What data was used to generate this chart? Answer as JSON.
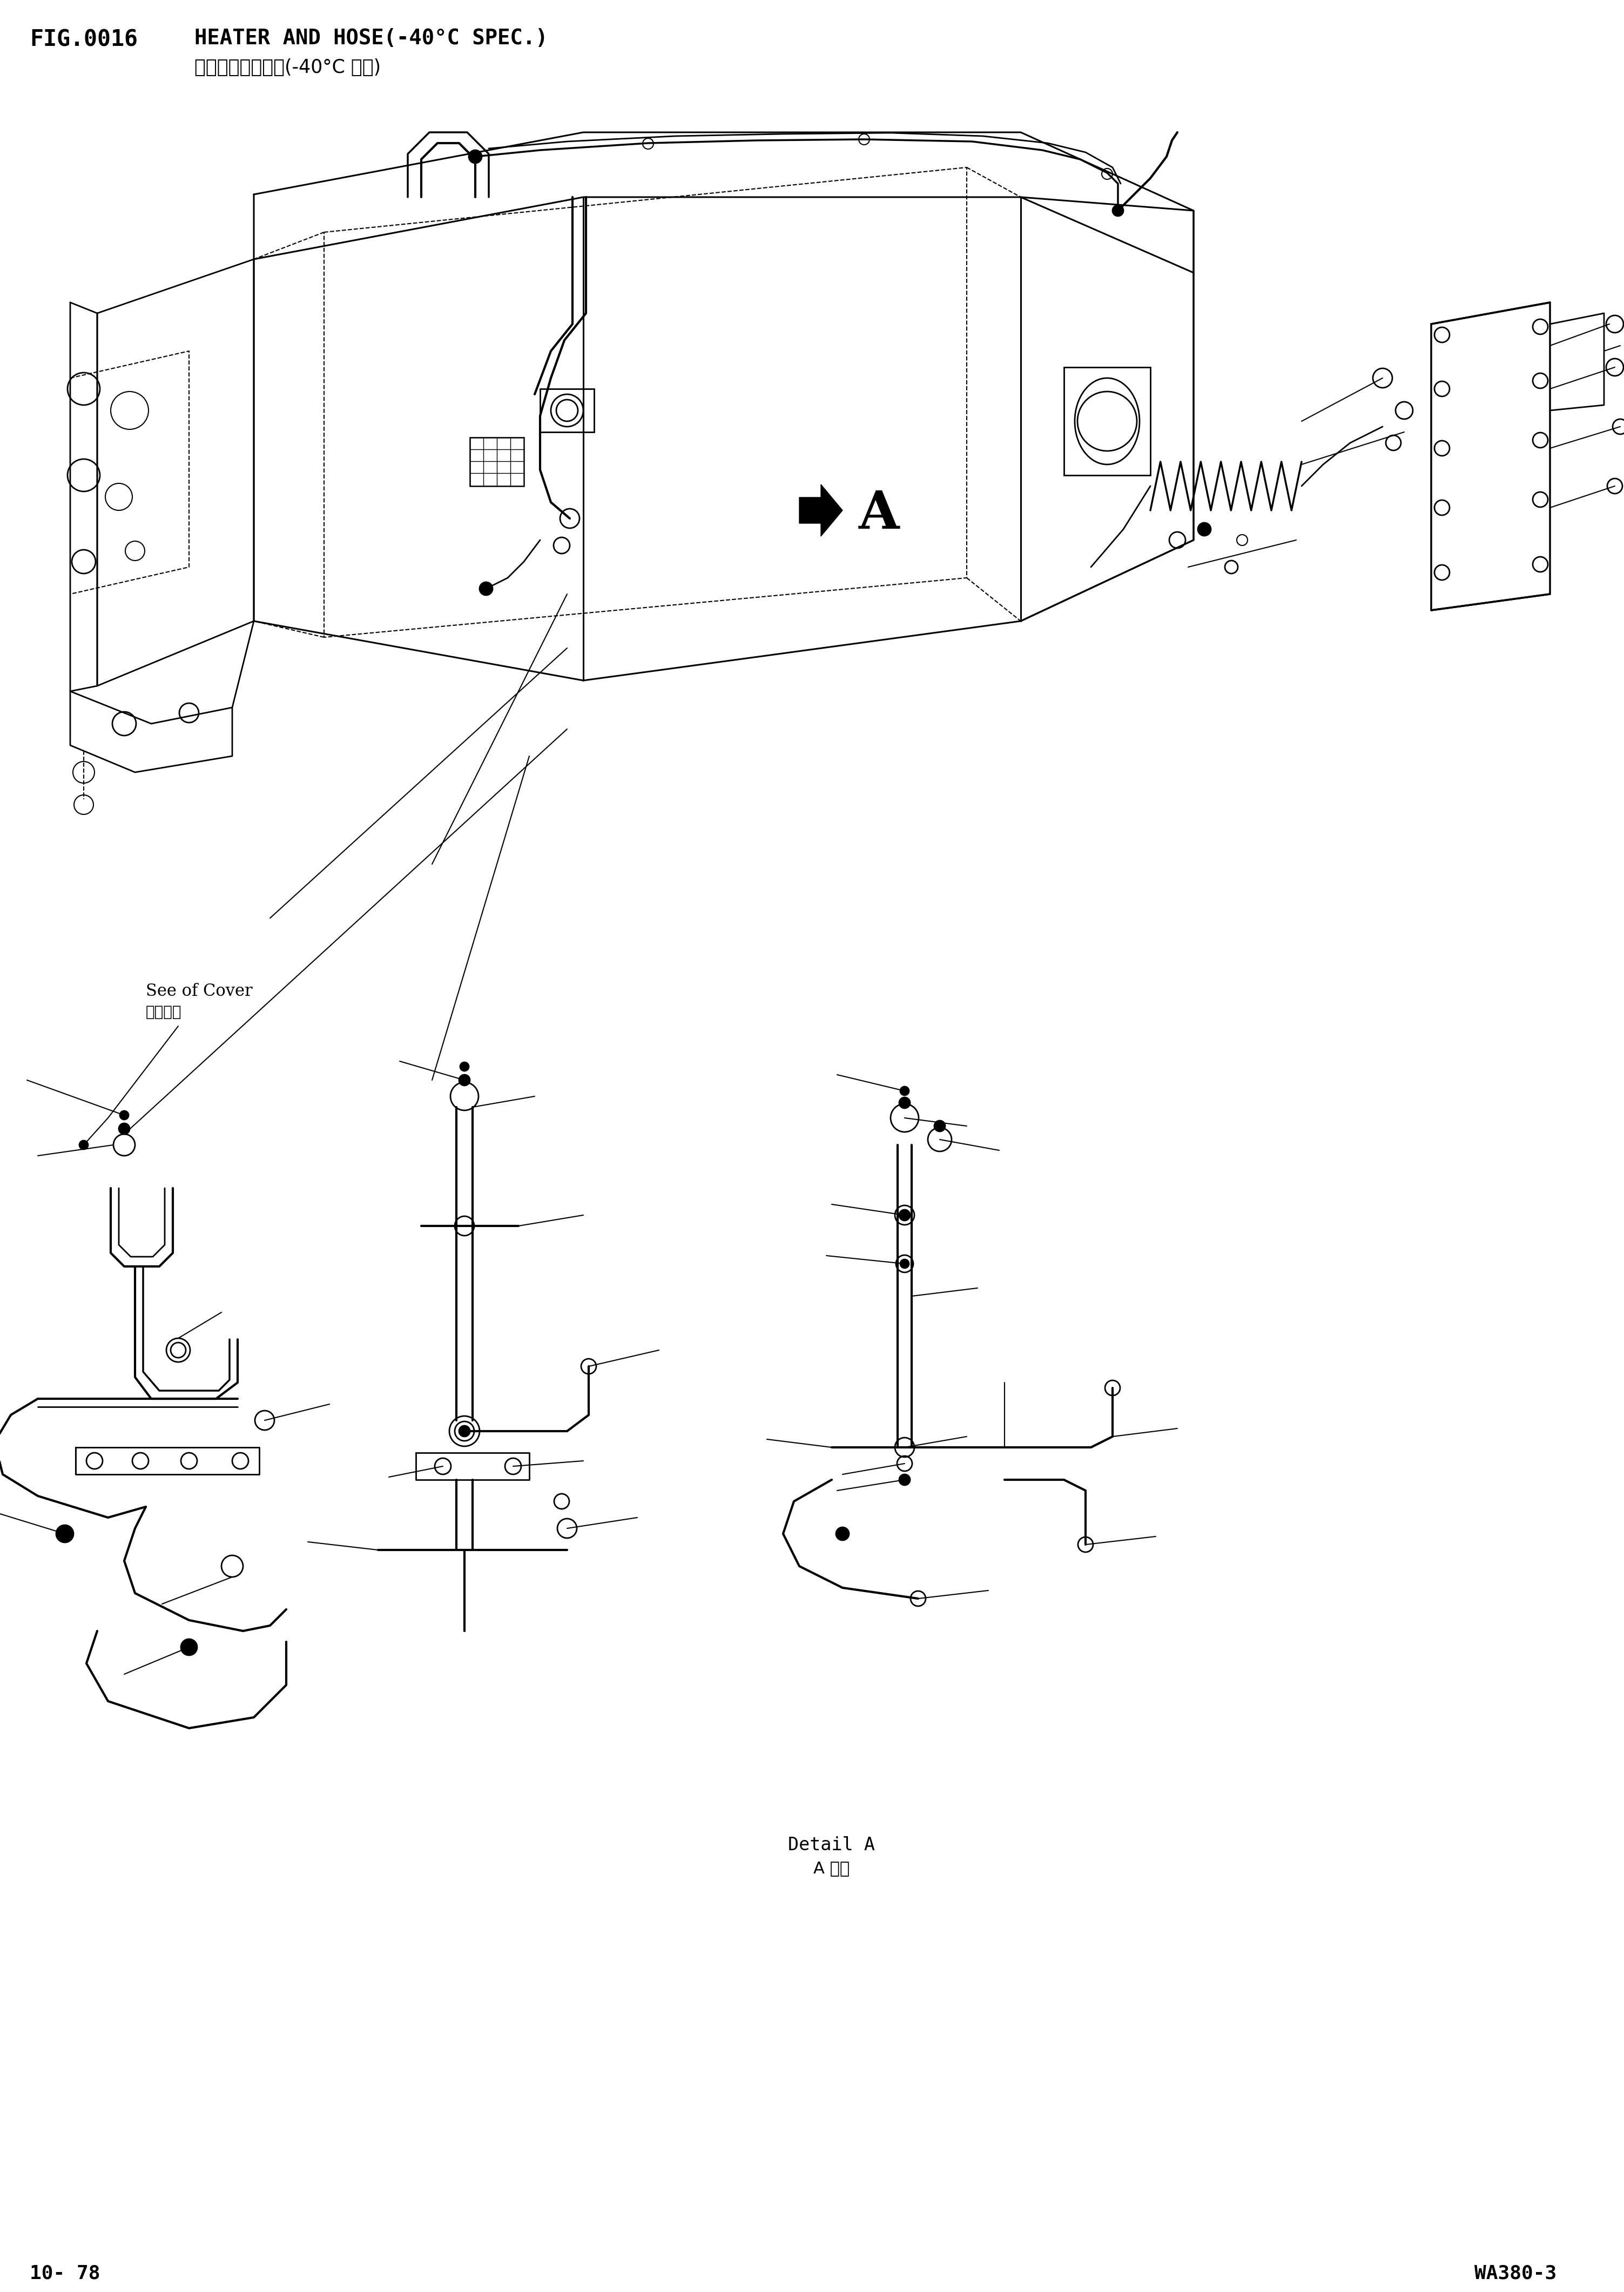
{
  "fig_number": "FIG.0016",
  "title_en": "HEATER AND HOSE(-40°C SPEC.)",
  "title_cn": "车载加热系统管路(-40°C 仕样)",
  "page_left": "10- 78",
  "page_right": "WA380-3",
  "see_of_cover_en": "See of Cover",
  "see_of_cover_cn": "参照盖子",
  "detail_a_en": "Detail A",
  "detail_a_cn": "A 详细",
  "label_A": "A",
  "bg": "#ffffff",
  "lc": "#000000"
}
